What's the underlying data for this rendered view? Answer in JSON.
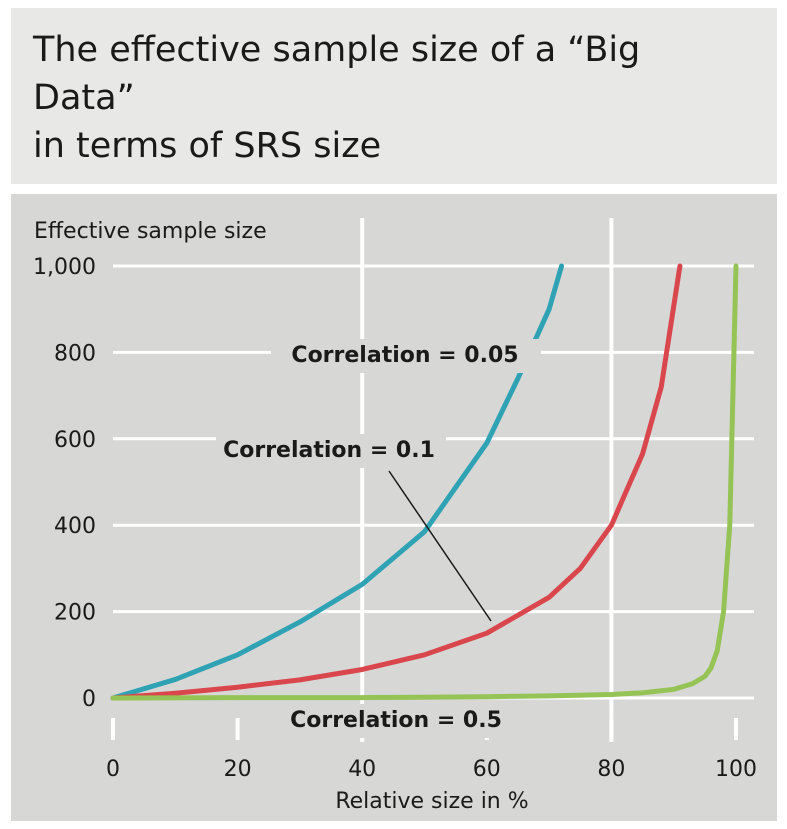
{
  "title_lines": [
    "The effective sample size of a “Big Data”",
    "in terms of SRS size"
  ],
  "chart_data": {
    "type": "line",
    "title": "The effective sample size of a “Big Data” in terms of SRS size",
    "xlabel": "Relative size in %",
    "ylabel": "Effective sample size",
    "xlim": [
      0,
      100
    ],
    "ylim": [
      0,
      1000
    ],
    "x_ticks": [
      0,
      20,
      40,
      60,
      80,
      100
    ],
    "x_tick_labels": [
      "0",
      "20",
      "40",
      "60",
      "80",
      "100"
    ],
    "y_ticks": [
      0,
      200,
      400,
      600,
      800,
      1000
    ],
    "y_tick_labels": [
      "0",
      "200",
      "400",
      "600",
      "800",
      "1,000"
    ],
    "grid": true,
    "series": [
      {
        "name": "Correlation = 0.05",
        "color": "#2fa2b4",
        "x": [
          0,
          10,
          20,
          30,
          40,
          50,
          60,
          65,
          70,
          72
        ],
        "y": [
          0,
          43,
          100,
          176,
          263,
          385,
          590,
          740,
          900,
          1000
        ]
      },
      {
        "name": "Correlation = 0.1",
        "color": "#d9474d",
        "x": [
          0,
          10,
          20,
          30,
          40,
          50,
          60,
          70,
          75,
          80,
          85,
          88,
          91
        ],
        "y": [
          0,
          11,
          25,
          42,
          66,
          100,
          150,
          233,
          300,
          400,
          565,
          720,
          1000
        ]
      },
      {
        "name": "Correlation = 0.5",
        "color": "#95c356",
        "x": [
          0,
          20,
          40,
          60,
          70,
          80,
          85,
          90,
          93,
          95,
          96,
          97,
          98,
          99,
          99.5,
          100
        ],
        "y": [
          0,
          1,
          1,
          3,
          5,
          8,
          12,
          20,
          33,
          50,
          70,
          110,
          200,
          400,
          700,
          1000
        ]
      }
    ],
    "annotations": [
      {
        "text": "Correlation = 0.05",
        "series": 0
      },
      {
        "text": "Correlation = 0.1",
        "series": 1,
        "leader_line": true
      },
      {
        "text": "Correlation = 0.5",
        "series": 2
      }
    ]
  }
}
